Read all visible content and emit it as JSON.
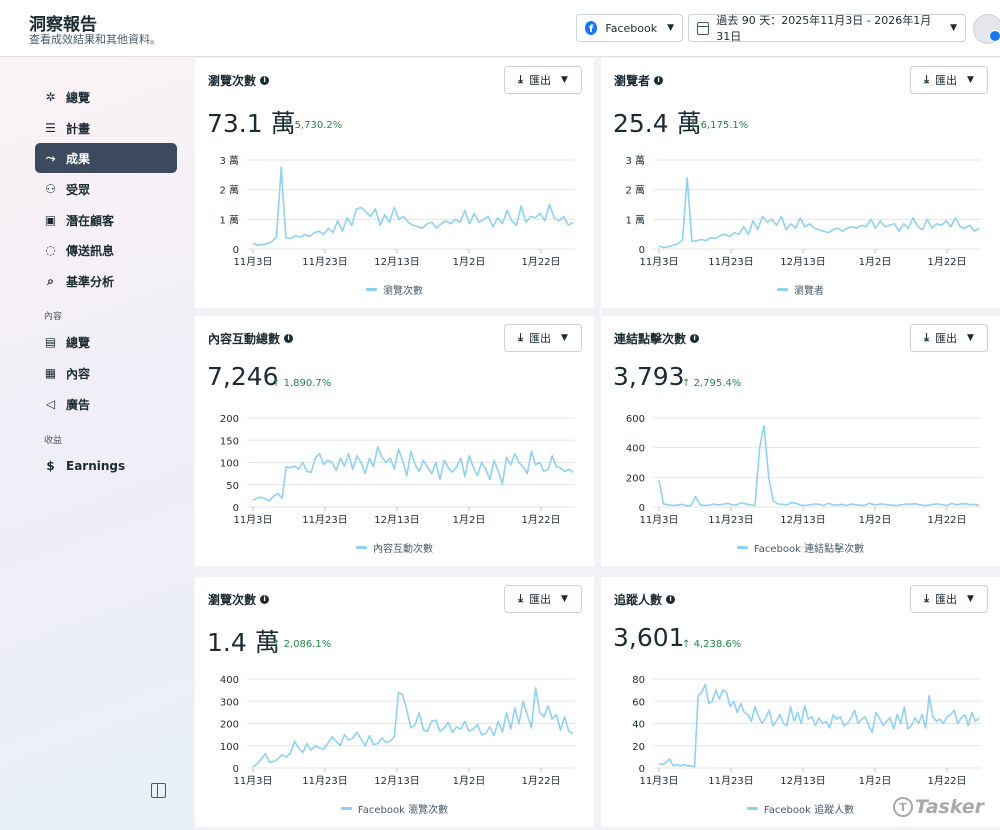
{
  "header": {
    "title": "洞察報告",
    "subtitle": "查看成效結果和其他資料。",
    "platform_label": "Facebook",
    "date_range_label": "過去 90 天：2025年11月3日 - 2026年1月31日"
  },
  "sidebar": {
    "items_top": [
      {
        "label": "總覽",
        "icon": "nodes-icon"
      },
      {
        "label": "計畫",
        "icon": "list-icon"
      },
      {
        "label": "成果",
        "icon": "trend-icon",
        "active": true
      },
      {
        "label": "受眾",
        "icon": "people-icon"
      },
      {
        "label": "潛在顧客",
        "icon": "contact-card-icon"
      },
      {
        "label": "傳送訊息",
        "icon": "chat-icon"
      },
      {
        "label": "基準分析",
        "icon": "benchmark-icon"
      }
    ],
    "section_content": "內容",
    "items_content": [
      {
        "label": "總覽",
        "icon": "content-overview-icon"
      },
      {
        "label": "內容",
        "icon": "table-icon"
      },
      {
        "label": "廣告",
        "icon": "megaphone-icon"
      }
    ],
    "section_revenue": "收益",
    "items_revenue": [
      {
        "label": "Earnings",
        "icon": "dollar-icon"
      }
    ]
  },
  "export_label": "匯出",
  "cards": [
    {
      "title": "瀏覽次數",
      "value": "73.1 萬",
      "change": "5,730.2%",
      "legend": "瀏覽次數"
    },
    {
      "title": "瀏覽者",
      "value": "25.4 萬",
      "change": "6,175.1%",
      "legend": "瀏覽者"
    },
    {
      "title": "內容互動總數",
      "value": "7,246",
      "change": "1,890.7%",
      "legend": "內容互動次數"
    },
    {
      "title": "連結點擊次數",
      "value": "3,793",
      "change": "2,795.4%",
      "legend": "Facebook 連結點擊次數"
    },
    {
      "title": "瀏覽次數",
      "value": "1.4 萬",
      "change": "2,086.1%",
      "legend": "Facebook 瀏覽次數"
    },
    {
      "title": "追蹤人數",
      "value": "3,601",
      "change": "4,238.6%",
      "legend": "Facebook 追蹤人數"
    }
  ],
  "watermark": "Tasker",
  "colors": {
    "line": "#8fd1f2",
    "active_nav": "#3b4a5c",
    "positive": "#24844a",
    "brand": "#1877f2"
  },
  "chart_data": [
    {
      "type": "line",
      "x_ticks": [
        "11月3日",
        "11月23日",
        "12月13日",
        "1月2日",
        "1月22日"
      ],
      "y_ticks": [
        "0",
        "1 萬",
        "2 萬",
        "3 萬"
      ],
      "ylim": [
        0,
        30000
      ],
      "series": [
        {
          "name": "瀏覽次數",
          "values": [
            2000,
            1200,
            1500,
            1800,
            2500,
            4000,
            27500,
            3800,
            3500,
            4500,
            4000,
            4800,
            4200,
            5500,
            6000,
            5000,
            7000,
            5500,
            9500,
            6000,
            10500,
            8000,
            13500,
            14000,
            12500,
            11000,
            13500,
            8000,
            11500,
            9000,
            14000,
            10000,
            11000,
            9000,
            8000,
            7500,
            7000,
            8500,
            9000,
            7000,
            8500,
            9500,
            8500,
            10000,
            9000,
            13000,
            8500,
            12000,
            9000,
            10000,
            11000,
            7500,
            10500,
            8500,
            13000,
            9500,
            8000,
            14500,
            9000,
            11000,
            10500,
            12000,
            9500,
            15000,
            10500,
            9500,
            11000,
            8000,
            9000
          ]
        }
      ]
    },
    {
      "type": "line",
      "x_ticks": [
        "11月3日",
        "11月23日",
        "12月13日",
        "1月2日",
        "1月22日"
      ],
      "y_ticks": [
        "0",
        "1 萬",
        "2 萬",
        "3 萬"
      ],
      "ylim": [
        0,
        30000
      ],
      "series": [
        {
          "name": "瀏覽者",
          "values": [
            1000,
            500,
            800,
            1200,
            1800,
            3000,
            24000,
            2500,
            2800,
            3200,
            2800,
            3800,
            3500,
            4500,
            5000,
            4200,
            5500,
            5000,
            7500,
            5000,
            9500,
            6500,
            11000,
            9000,
            10000,
            8000,
            11000,
            6500,
            8500,
            7000,
            10500,
            7500,
            8500,
            7000,
            6500,
            6000,
            5500,
            6500,
            7000,
            6000,
            7000,
            7500,
            7000,
            8000,
            7500,
            10000,
            7000,
            9500,
            7500,
            8000,
            8500,
            6000,
            8500,
            7000,
            10500,
            7500,
            6500,
            10000,
            7000,
            8500,
            8000,
            9500,
            7500,
            10500,
            7500,
            7000,
            8000,
            6000,
            7000
          ]
        }
      ]
    },
    {
      "type": "line",
      "x_ticks": [
        "11月3日",
        "11月23日",
        "12月13日",
        "1月2日",
        "1月22日"
      ],
      "y_ticks": [
        "0",
        "50",
        "100",
        "150",
        "200"
      ],
      "ylim": [
        0,
        200
      ],
      "series": [
        {
          "name": "內容互動次數",
          "values": [
            15,
            20,
            22,
            18,
            14,
            25,
            30,
            20,
            90,
            88,
            92,
            85,
            100,
            80,
            78,
            110,
            120,
            95,
            105,
            100,
            82,
            110,
            92,
            120,
            85,
            115,
            100,
            75,
            110,
            90,
            135,
            112,
            100,
            110,
            85,
            130,
            105,
            70,
            125,
            95,
            80,
            105,
            90,
            75,
            100,
            62,
            105,
            88,
            78,
            90,
            110,
            68,
            115,
            90,
            70,
            100,
            85,
            62,
            105,
            80,
            52,
            112,
            95,
            120,
            100,
            90,
            75,
            125,
            95,
            100,
            80,
            85,
            115,
            90,
            88,
            80,
            85,
            78
          ]
        }
      ]
    },
    {
      "type": "line",
      "x_ticks": [
        "11月3日",
        "11月23日",
        "12月13日",
        "1月2日",
        "1月22日"
      ],
      "y_ticks": [
        "0",
        "200",
        "400",
        "600"
      ],
      "ylim": [
        0,
        600
      ],
      "series": [
        {
          "name": "Facebook 連結點擊次數",
          "values": [
            180,
            20,
            15,
            10,
            12,
            18,
            8,
            10,
            70,
            15,
            10,
            12,
            20,
            15,
            18,
            25,
            15,
            12,
            30,
            20,
            15,
            10,
            400,
            550,
            200,
            40,
            20,
            18,
            15,
            30,
            25,
            12,
            10,
            15,
            20,
            18,
            10,
            25,
            15,
            12,
            18,
            10,
            20,
            15,
            12,
            10,
            25,
            15,
            18,
            20,
            15,
            12,
            10,
            15,
            20,
            18,
            22,
            15,
            10,
            12,
            18,
            20,
            15,
            10,
            25,
            15,
            20,
            22,
            15,
            18,
            12
          ]
        }
      ]
    },
    {
      "type": "line",
      "x_ticks": [
        "11月3日",
        "11月23日",
        "12月13日",
        "1月2日",
        "1月22日"
      ],
      "y_ticks": [
        "0",
        "100",
        "200",
        "300",
        "400"
      ],
      "ylim": [
        0,
        400
      ],
      "series": [
        {
          "name": "Facebook 瀏覽次數",
          "values": [
            5,
            20,
            40,
            65,
            25,
            30,
            40,
            60,
            50,
            65,
            120,
            90,
            70,
            110,
            80,
            100,
            90,
            85,
            110,
            140,
            120,
            100,
            150,
            125,
            135,
            160,
            130,
            100,
            145,
            105,
            110,
            135,
            115,
            120,
            140,
            340,
            330,
            260,
            180,
            195,
            250,
            170,
            165,
            210,
            215,
            165,
            180,
            205,
            160,
            185,
            175,
            210,
            165,
            175,
            195,
            150,
            155,
            185,
            145,
            210,
            160,
            250,
            175,
            270,
            200,
            300,
            240,
            180,
            360,
            250,
            230,
            280,
            220,
            240,
            170,
            230,
            165,
            155
          ]
        }
      ]
    },
    {
      "type": "line",
      "x_ticks": [
        "11月3日",
        "11月23日",
        "12月13日",
        "1月2日",
        "1月22日"
      ],
      "y_ticks": [
        "0",
        "20",
        "40",
        "60",
        "80"
      ],
      "ylim": [
        0,
        80
      ],
      "series": [
        {
          "name": "Facebook 追蹤人數",
          "values": [
            4,
            3,
            5,
            8,
            2,
            3,
            2,
            3,
            2,
            2,
            1,
            65,
            68,
            75,
            58,
            60,
            70,
            62,
            70,
            68,
            55,
            60,
            50,
            58,
            50,
            48,
            42,
            55,
            46,
            40,
            45,
            52,
            38,
            42,
            48,
            40,
            38,
            55,
            42,
            50,
            40,
            56,
            44,
            46,
            38,
            45,
            40,
            42,
            36,
            48,
            44,
            46,
            38,
            40,
            45,
            52,
            40,
            44,
            46,
            38,
            32,
            50,
            45,
            38,
            42,
            45,
            35,
            48,
            40,
            55,
            35,
            38,
            45,
            40,
            48,
            36,
            65,
            46,
            42,
            44,
            40,
            46,
            48,
            52,
            40,
            45,
            48,
            38,
            50,
            42,
            45
          ]
        }
      ]
    }
  ]
}
